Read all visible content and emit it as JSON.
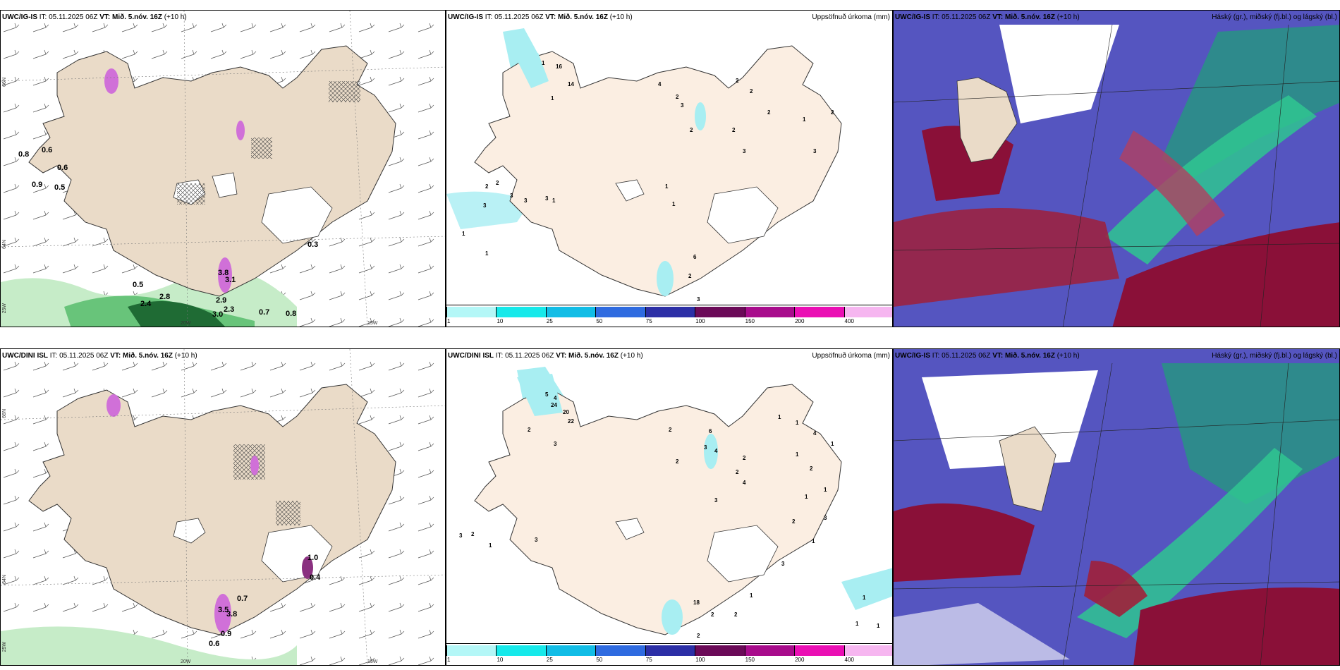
{
  "rows": [
    {
      "model": "UWC/IG-IS",
      "it": " IT: 05.11.2025 06Z ",
      "vt_label": "VT:",
      "vt_value": " Mið. 5.nóv. 16Z",
      "lead": " (+10 h)",
      "wind_values": [
        "0.8",
        "0.6",
        "0.6",
        "0.9",
        "0.5",
        "0.5",
        "2.4",
        "2.8",
        "2.9",
        "3.0",
        "2.3",
        "0.7",
        "0.8",
        "3.8",
        "3.1",
        "0.3"
      ],
      "precip_values": [
        "1",
        "1",
        "16",
        "14",
        "1",
        "1",
        "1",
        "2",
        "2",
        "3",
        "2",
        "2",
        "3",
        "3",
        "2",
        "1",
        "3",
        "1",
        "1",
        "4",
        "1",
        "2",
        "1",
        "1",
        "3",
        "1",
        "2",
        "1",
        "2",
        "2",
        "2",
        "2",
        "1",
        "3",
        "1",
        "3",
        "2",
        "1",
        "1",
        "1",
        "1",
        "1",
        "6",
        "2",
        "2",
        "1",
        "3",
        "2",
        "3"
      ],
      "coords": {
        "lat_top": "66N",
        "lat_mid": "64N",
        "lat_bot": "25W",
        "lon_a": "20W",
        "lon_b": "15W"
      }
    },
    {
      "model": "UWC/DINI ISL",
      "it": " IT: 05.11.2025 06Z ",
      "vt_label": "VT:",
      "vt_value": " Mið. 5.nóv. 16Z",
      "lead": " (+10 h)",
      "wind_values": [
        "0.7",
        "0.9",
        "0.6",
        "3.5",
        "3.8",
        "1.0",
        "0.4"
      ],
      "precip_values": [
        "5",
        "4",
        "24",
        "20",
        "22",
        "2",
        "1",
        "3",
        "2",
        "3",
        "3",
        "2",
        "1",
        "2",
        "6",
        "3",
        "4",
        "2",
        "2",
        "2",
        "1",
        "1",
        "4",
        "3",
        "1",
        "4",
        "1",
        "2",
        "1",
        "1",
        "2",
        "3",
        "1",
        "3",
        "2",
        "2",
        "1",
        "2",
        "1",
        "3",
        "1",
        "2",
        "1",
        "2",
        "1",
        "1",
        "1",
        "1",
        "18",
        "2",
        "2",
        "1",
        "1",
        "2",
        "1",
        "1"
      ],
      "coords": {
        "lat_top": "66N",
        "lat_mid": "64N",
        "lat_bot": "25W",
        "lon_a": "20W",
        "lon_b": "15W"
      }
    }
  ],
  "precip_title": "Uppsöfnuð úrkoma (mm)",
  "cloud_title": "Háský (gr.), miðský (fj.bl.) og lágský (bl.)",
  "colorbar": {
    "ticks": [
      "1",
      "10",
      "25",
      "50",
      "75",
      "100",
      "150",
      "200",
      "400"
    ],
    "colors": [
      "#b4f7f7",
      "#16e9ea",
      "#12bde6",
      "#2f6be0",
      "#2c2fa6",
      "#6b0a58",
      "#a80c8c",
      "#ea0fb4",
      "#f6b6f0"
    ]
  },
  "colors": {
    "land": "#eadbc8",
    "land_precip": "#fbeee2",
    "sea_cloud": "#5555c0",
    "precip": "#a8eef2"
  }
}
